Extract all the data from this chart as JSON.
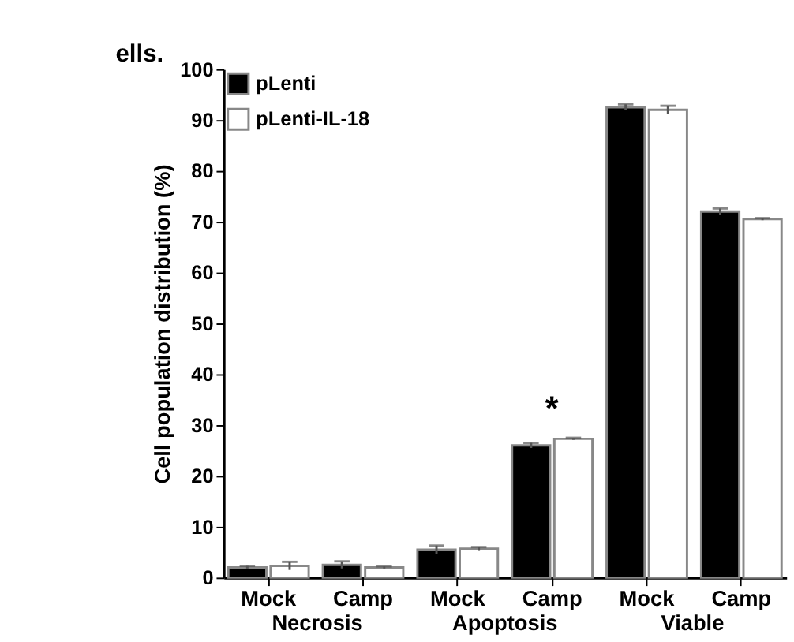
{
  "chart_data": {
    "type": "bar",
    "ylabel": "Cell population distribution (%)",
    "categories": [
      "Mock",
      "Camp",
      "Mock",
      "Camp",
      "Mock",
      "Camp"
    ],
    "series": [
      {
        "name": "pLenti",
        "color": "#000000",
        "values": [
          2,
          2.5,
          5.5,
          26,
          92.5,
          72
        ],
        "errors": [
          0.3,
          0.7,
          0.8,
          0.5,
          0.6,
          0.6
        ]
      },
      {
        "name": "pLenti-IL-18",
        "color": "#ffffff",
        "values": [
          2.3,
          2,
          5.7,
          27.3,
          92,
          70.5
        ],
        "errors": [
          0.8,
          0.2,
          0.3,
          0.2,
          0.8,
          0.2
        ]
      }
    ],
    "ylim": [
      0,
      100
    ],
    "yticks": [
      0,
      10,
      20,
      30,
      40,
      50,
      60,
      70,
      80,
      90,
      100
    ],
    "annotations": [
      "ells.",
      "Necrosis",
      "Apoptosis",
      "Viable",
      "*"
    ],
    "grid": false,
    "legend": "top left"
  }
}
